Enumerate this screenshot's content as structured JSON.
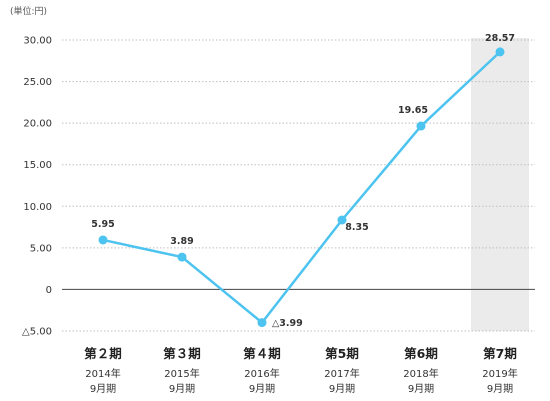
{
  "unit_label": "(単位:円)",
  "colors": {
    "line": "#4dc3ef",
    "highlight_band": "#ebebeb",
    "grid": "#bfbfbf",
    "zero_line": "#444444",
    "text": "#333333"
  },
  "chart_data": {
    "type": "line",
    "title": "",
    "xlabel": "",
    "ylabel": "",
    "ylim": [
      -5,
      30
    ],
    "y_ticks": [
      {
        "value": 30,
        "label": "30.00"
      },
      {
        "value": 25,
        "label": "25.00"
      },
      {
        "value": 20,
        "label": "20.00"
      },
      {
        "value": 15,
        "label": "15.00"
      },
      {
        "value": 10,
        "label": "10.00"
      },
      {
        "value": 5,
        "label": "5.00"
      },
      {
        "value": 0,
        "label": "0"
      },
      {
        "value": -5,
        "label": "△5.00"
      }
    ],
    "grid": true,
    "highlighted_category": "第7期",
    "categories": [
      {
        "period": "第２期",
        "year": "2014年",
        "month": "9月期"
      },
      {
        "period": "第３期",
        "year": "2015年",
        "month": "9月期"
      },
      {
        "period": "第４期",
        "year": "2016年",
        "month": "9月期"
      },
      {
        "period": "第5期",
        "year": "2017年",
        "month": "9月期"
      },
      {
        "period": "第6期",
        "year": "2018年",
        "month": "9月期"
      },
      {
        "period": "第7期",
        "year": "2019年",
        "month": "9月期"
      }
    ],
    "series": [
      {
        "values": [
          5.95,
          3.89,
          -3.99,
          8.35,
          19.65,
          28.57
        ],
        "labels": [
          "5.95",
          "3.89",
          "△3.99",
          "8.35",
          "19.65",
          "28.57"
        ]
      }
    ]
  }
}
